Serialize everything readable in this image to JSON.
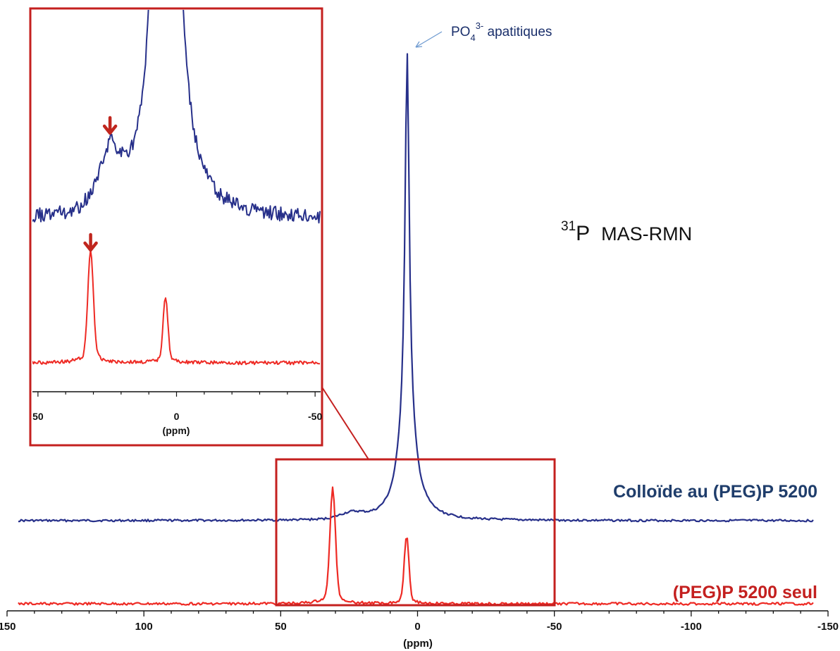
{
  "colors": {
    "series_blue": "#27308a",
    "series_red": "#ee2a24",
    "frame_red": "#c4201f",
    "arrow_red": "#c0261e",
    "label_blue": "#1f3d6b",
    "label_red": "#c4201f",
    "annotation_arrow": "#6f9bd1"
  },
  "annotations": {
    "peak_label_main": "PO",
    "peak_label_sub": "4",
    "peak_label_sup": "3-",
    "peak_label_rest": " apatitiques",
    "nucleus_sup": "31",
    "nucleus_main": "P",
    "technique": "MAS-RMN"
  },
  "chart_data": [
    {
      "type": "line",
      "title": "",
      "xlabel": "(ppm)",
      "ylabel": "",
      "xlim": [
        150,
        -150
      ],
      "x_reversed": true,
      "x_ticks": [
        "150",
        "100",
        "50",
        "0",
        "-50",
        "-100",
        "-150"
      ],
      "x_tick_values": [
        150,
        100,
        50,
        0,
        -50,
        -100,
        -150
      ],
      "grid": false,
      "series": [
        {
          "name": "Colloïde au (PEG)P 5200",
          "peaks": [
            {
              "x": 3.8,
              "relative_height": 1.0,
              "label": "PO43- apatitiques"
            },
            {
              "x": 24,
              "relative_height": 0.012
            }
          ]
        },
        {
          "name": "(PEG)P 5200 seul",
          "peaks": [
            {
              "x": 31,
              "relative_height": 1.0
            },
            {
              "x": 4,
              "relative_height": 0.7
            }
          ]
        }
      ]
    },
    {
      "type": "line",
      "title": "",
      "xlabel": "(ppm)",
      "ylabel": "",
      "xlim": [
        52,
        -52
      ],
      "x_reversed": true,
      "x_ticks": [
        "50",
        "0",
        "-50"
      ],
      "x_tick_values": [
        50,
        0,
        -50
      ],
      "zoom_of_x_range": [
        52,
        -52
      ],
      "grid": false,
      "markers": [
        {
          "series": "Colloïde au (PEG)P 5200",
          "x": 24
        },
        {
          "series": "(PEG)P 5200 seul",
          "x": 31
        }
      ]
    }
  ]
}
